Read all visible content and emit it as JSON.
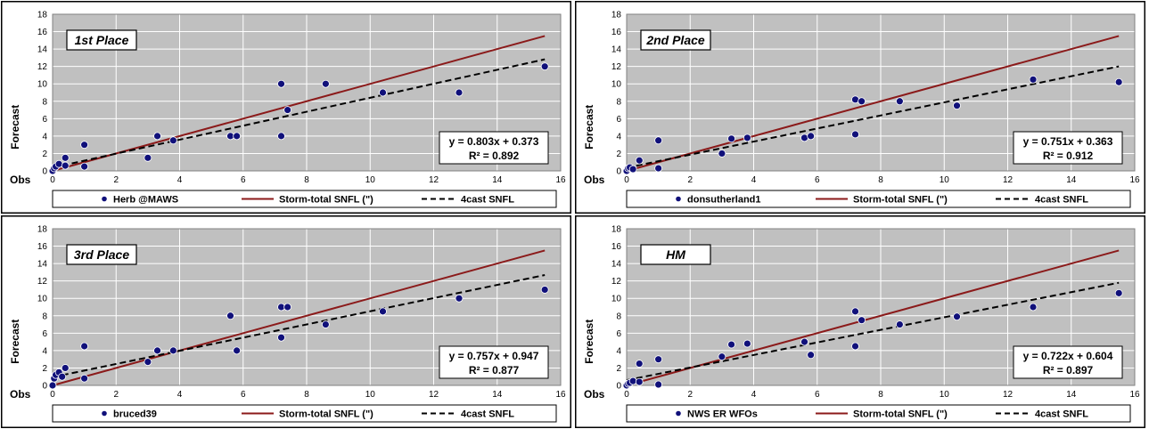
{
  "colors": {
    "plot_bg": "#c0c0c0",
    "grid": "#ffffff",
    "trend": "#8b1a1a",
    "marker": "#10107a",
    "regression": "#000000",
    "frame": "#000000"
  },
  "chart_data": [
    {
      "type": "scatter",
      "title": "1st Place",
      "xlabel": "Obs",
      "ylabel": "Forecast",
      "xlim": [
        0,
        16
      ],
      "ylim": [
        0,
        18
      ],
      "xticks": [
        "0",
        "2",
        "4",
        "6",
        "8",
        "10",
        "12",
        "14",
        "16"
      ],
      "yticks": [
        "0",
        "2",
        "4",
        "6",
        "8",
        "10",
        "12",
        "14",
        "16",
        "18"
      ],
      "grid": true,
      "legend_position": "bottom",
      "series": [
        {
          "name": "Herb @MAWS",
          "kind": "points",
          "x": [
            0,
            0.05,
            0.1,
            0.2,
            0.4,
            0.4,
            1.0,
            1.0,
            3.0,
            3.3,
            3.8,
            5.6,
            5.8,
            7.2,
            7.2,
            7.4,
            8.6,
            10.4,
            12.8,
            15.5
          ],
          "y": [
            0,
            0.3,
            0.5,
            0.8,
            1.5,
            0.6,
            3.0,
            0.5,
            1.5,
            4.0,
            3.5,
            4.0,
            4.0,
            10.0,
            4.0,
            7.0,
            10.0,
            9.0,
            9.0,
            12.0
          ]
        },
        {
          "name": "Storm-total SNFL (\")",
          "kind": "line",
          "x": [
            0,
            15.5
          ],
          "y": [
            0,
            15.5
          ]
        },
        {
          "name": "4cast SNFL",
          "kind": "trend",
          "slope": 0.803,
          "intercept": 0.373,
          "x_range": [
            0,
            15.5
          ]
        }
      ],
      "annotation": {
        "equation": "y = 0.803x + 0.373",
        "r2": "R² = 0.892"
      }
    },
    {
      "type": "scatter",
      "title": "2nd Place",
      "xlabel": "Obs",
      "ylabel": "Forecast",
      "xlim": [
        0,
        16
      ],
      "ylim": [
        0,
        18
      ],
      "xticks": [
        "0",
        "2",
        "4",
        "6",
        "8",
        "10",
        "12",
        "14",
        "16"
      ],
      "yticks": [
        "0",
        "2",
        "4",
        "6",
        "8",
        "10",
        "12",
        "14",
        "16",
        "18"
      ],
      "grid": true,
      "legend_position": "bottom",
      "series": [
        {
          "name": "donsutherland1",
          "kind": "points",
          "x": [
            0,
            0.05,
            0.1,
            0.2,
            0.4,
            1.0,
            1.0,
            3.0,
            3.3,
            3.8,
            5.6,
            5.8,
            7.2,
            7.2,
            7.4,
            8.6,
            10.4,
            12.8,
            15.5
          ],
          "y": [
            0,
            0.3,
            0.4,
            0.2,
            1.2,
            3.5,
            0.3,
            2.0,
            3.7,
            3.8,
            3.8,
            4.0,
            8.2,
            4.2,
            8.0,
            8.0,
            7.5,
            10.5,
            10.2
          ]
        },
        {
          "name": "Storm-total SNFL (\")",
          "kind": "line",
          "x": [
            0,
            15.5
          ],
          "y": [
            0,
            15.5
          ]
        },
        {
          "name": "4cast SNFL",
          "kind": "trend",
          "slope": 0.751,
          "intercept": 0.363,
          "x_range": [
            0,
            15.5
          ]
        }
      ],
      "annotation": {
        "equation": "y = 0.751x + 0.363",
        "r2": "R² = 0.912"
      }
    },
    {
      "type": "scatter",
      "title": "3rd Place",
      "xlabel": "Obs",
      "ylabel": "Forecast",
      "xlim": [
        0,
        16
      ],
      "ylim": [
        0,
        18
      ],
      "xticks": [
        "0",
        "2",
        "4",
        "6",
        "8",
        "10",
        "12",
        "14",
        "16"
      ],
      "yticks": [
        "0",
        "2",
        "4",
        "6",
        "8",
        "10",
        "12",
        "14",
        "16",
        "18"
      ],
      "grid": true,
      "legend_position": "bottom",
      "series": [
        {
          "name": "bruced39",
          "kind": "points",
          "x": [
            0,
            0.05,
            0.1,
            0.2,
            0.3,
            0.4,
            1.0,
            1.0,
            3.0,
            3.3,
            3.8,
            5.6,
            5.8,
            7.2,
            7.2,
            7.4,
            8.6,
            10.4,
            12.8,
            15.5
          ],
          "y": [
            0,
            0.8,
            1.2,
            1.5,
            1.0,
            2.0,
            4.5,
            0.8,
            2.7,
            4.0,
            4.0,
            8.0,
            4.0,
            9.0,
            5.5,
            9.0,
            7.0,
            8.5,
            10.0,
            11.0
          ]
        },
        {
          "name": "Storm-total SNFL (\")",
          "kind": "line",
          "x": [
            0,
            15.5
          ],
          "y": [
            0,
            15.5
          ]
        },
        {
          "name": "4cast SNFL",
          "kind": "trend",
          "slope": 0.757,
          "intercept": 0.947,
          "x_range": [
            0,
            15.5
          ]
        }
      ],
      "annotation": {
        "equation": "y = 0.757x + 0.947",
        "r2": "R² = 0.877"
      }
    },
    {
      "type": "scatter",
      "title": "HM",
      "xlabel": "Obs",
      "ylabel": "Forecast",
      "xlim": [
        0,
        16
      ],
      "ylim": [
        0,
        18
      ],
      "xticks": [
        "0",
        "2",
        "4",
        "6",
        "8",
        "10",
        "12",
        "14",
        "16"
      ],
      "yticks": [
        "0",
        "2",
        "4",
        "6",
        "8",
        "10",
        "12",
        "14",
        "16",
        "18"
      ],
      "grid": true,
      "legend_position": "bottom",
      "series": [
        {
          "name": "NWS ER WFOs",
          "kind": "points",
          "x": [
            0,
            0.05,
            0.1,
            0.2,
            0.4,
            0.4,
            1.0,
            1.0,
            3.0,
            3.3,
            3.8,
            5.6,
            5.8,
            7.2,
            7.2,
            7.4,
            8.6,
            10.4,
            12.8,
            15.5
          ],
          "y": [
            0,
            0.2,
            0.3,
            0.5,
            2.5,
            0.4,
            3.0,
            0.1,
            3.3,
            4.7,
            4.8,
            5.0,
            3.5,
            8.5,
            4.5,
            7.5,
            7.0,
            7.9,
            9.0,
            10.6
          ]
        },
        {
          "name": "Storm-total SNFL (\")",
          "kind": "line",
          "x": [
            0,
            15.5
          ],
          "y": [
            0,
            15.5
          ]
        },
        {
          "name": "4cast SNFL",
          "kind": "trend",
          "slope": 0.722,
          "intercept": 0.604,
          "x_range": [
            0,
            15.5
          ]
        }
      ],
      "annotation": {
        "equation": "y = 0.722x + 0.604",
        "r2": "R² = 0.897"
      }
    }
  ]
}
